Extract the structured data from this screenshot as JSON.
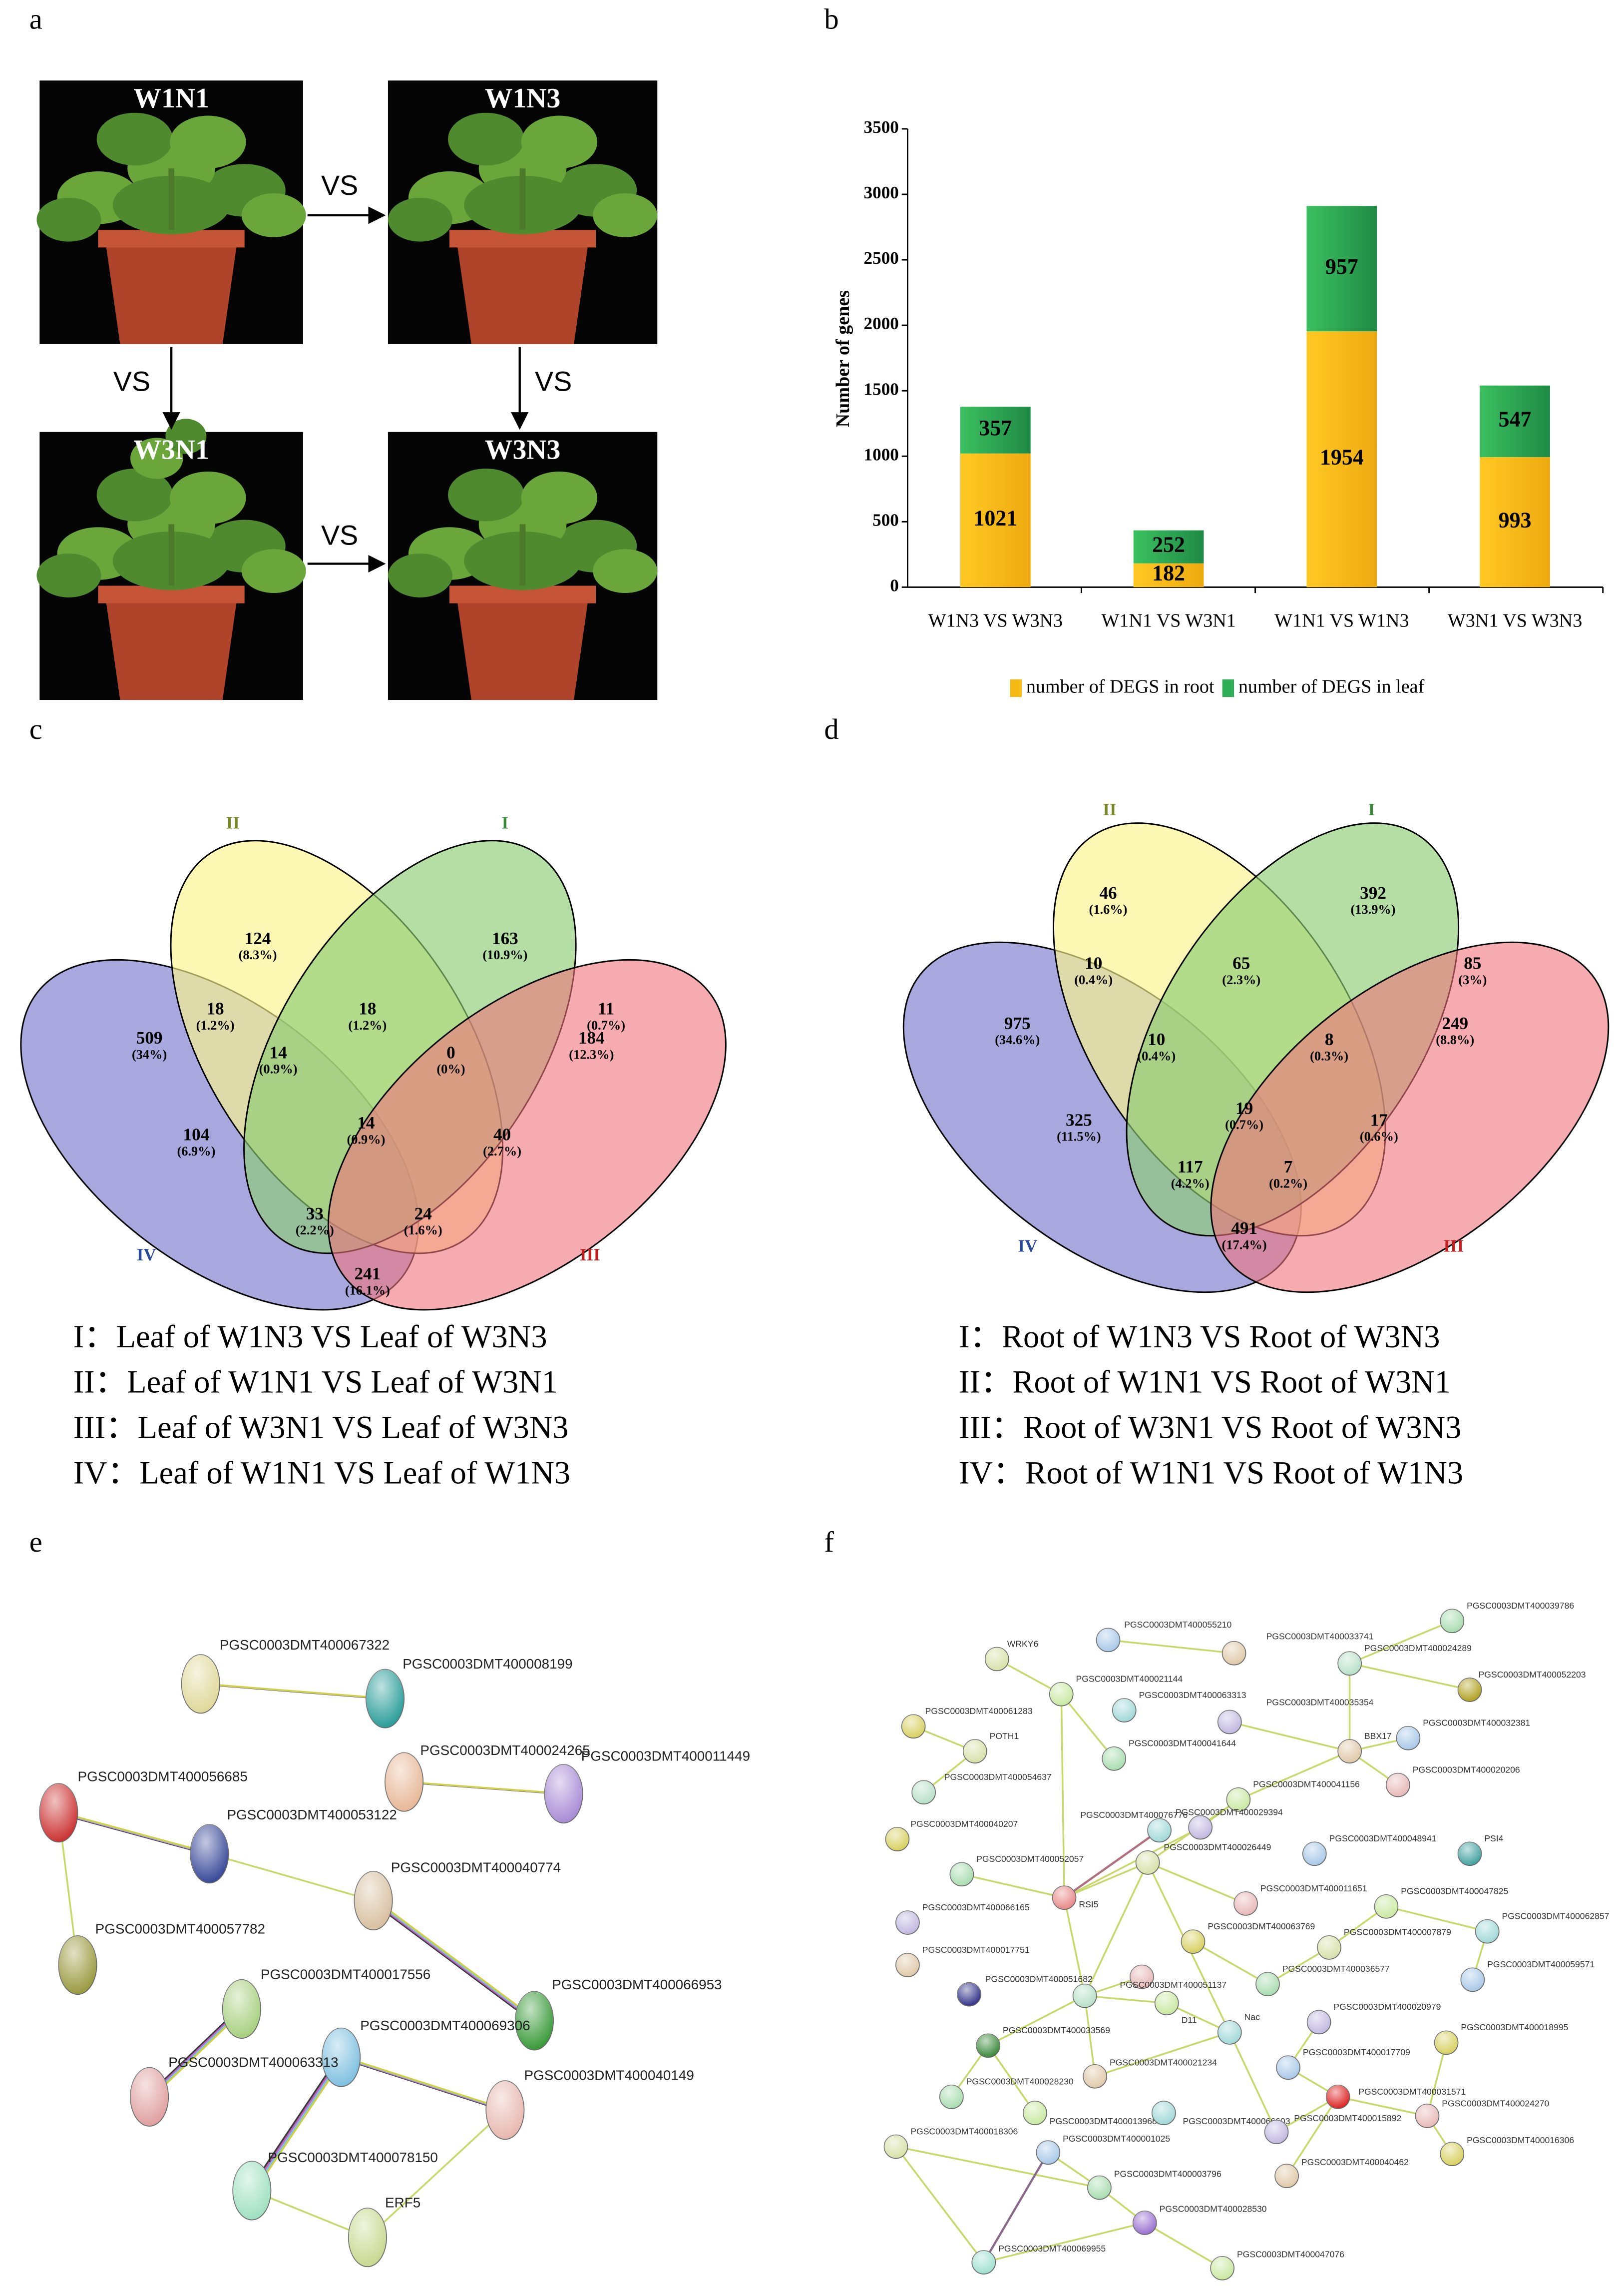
{
  "panel_labels": [
    "a",
    "b",
    "c",
    "d",
    "e",
    "f"
  ],
  "panel_a": {
    "photos": [
      "W1N1",
      "W1N3",
      "W3N1",
      "W3N3"
    ],
    "vs": [
      "VS",
      "VS",
      "VS",
      "VS"
    ]
  },
  "chart_data": {
    "type": "bar",
    "stacked": true,
    "categories": [
      "W1N3 VS W3N3",
      "W1N1 VS W3N1",
      "W1N1 VS W1N3",
      "W3N1 VS W3N3"
    ],
    "series": [
      {
        "name": "number of DEGS in root",
        "color": "#f5b914",
        "values": [
          1021,
          182,
          1954,
          993
        ]
      },
      {
        "name": "number of DEGS in leaf",
        "color": "#2fae55",
        "values": [
          357,
          252,
          957,
          547
        ]
      }
    ],
    "ylabel": "Number of genes",
    "ylim": [
      0,
      3500
    ],
    "yticks": [
      0,
      500,
      1000,
      1500,
      2000,
      2500,
      3000,
      3500
    ],
    "legend": "bottom"
  },
  "venn_c": {
    "sets": [
      "I",
      "II",
      "III",
      "IV"
    ],
    "regions": [
      {
        "value": 124,
        "percent": "(8.3%)"
      },
      {
        "value": 163,
        "percent": "(10.9%)"
      },
      {
        "value": 18,
        "percent": "(1.2%)"
      },
      {
        "value": 18,
        "percent": "(1.2%)"
      },
      {
        "value": 11,
        "percent": "(0.7%)"
      },
      {
        "value": 509,
        "percent": "(34%)"
      },
      {
        "value": 184,
        "percent": "(12.3%)"
      },
      {
        "value": 14,
        "percent": "(0.9%)"
      },
      {
        "value": 0,
        "percent": "(0%)"
      },
      {
        "value": 14,
        "percent": "(0.9%)"
      },
      {
        "value": 104,
        "percent": "(6.9%)"
      },
      {
        "value": 40,
        "percent": "(2.7%)"
      },
      {
        "value": 33,
        "percent": "(2.2%)"
      },
      {
        "value": 24,
        "percent": "(1.6%)"
      },
      {
        "value": 241,
        "percent": "(16.1%)"
      }
    ],
    "legend": [
      "I：Leaf of W1N3 VS Leaf of W3N3",
      "II：Leaf of W1N1 VS Leaf of W3N1",
      "III：Leaf of W3N1 VS Leaf of W3N3",
      "IV：Leaf of W1N1 VS Leaf of W1N3"
    ]
  },
  "venn_d": {
    "sets": [
      "I",
      "II",
      "III",
      "IV"
    ],
    "regions": [
      {
        "value": 46,
        "percent": "(1.6%)"
      },
      {
        "value": 392,
        "percent": "(13.9%)"
      },
      {
        "value": 10,
        "percent": "(0.4%)"
      },
      {
        "value": 65,
        "percent": "(2.3%)"
      },
      {
        "value": 85,
        "percent": "(3%)"
      },
      {
        "value": 975,
        "percent": "(34.6%)"
      },
      {
        "value": 249,
        "percent": "(8.8%)"
      },
      {
        "value": 10,
        "percent": "(0.4%)"
      },
      {
        "value": 8,
        "percent": "(0.3%)"
      },
      {
        "value": 19,
        "percent": "(0.7%)"
      },
      {
        "value": 325,
        "percent": "(11.5%)"
      },
      {
        "value": 17,
        "percent": "(0.6%)"
      },
      {
        "value": 117,
        "percent": "(4.2%)"
      },
      {
        "value": 7,
        "percent": "(0.2%)"
      },
      {
        "value": 491,
        "percent": "(17.4%)"
      }
    ],
    "legend": [
      "I：Root of W1N3 VS Root of W3N3",
      "II：Root of W1N1 VS Root of W3N1",
      "III：Root of W3N1 VS Root of W3N3",
      "IV：Root of W1N1 VS Root of W1N3"
    ]
  },
  "network_e": {
    "nodes": [
      {
        "label": "PGSC0003DMT400067322",
        "color": "#e0d89a"
      },
      {
        "label": "PGSC0003DMT400008199",
        "color": "#2a9d9a"
      },
      {
        "label": "PGSC0003DMT400024265",
        "color": "#e8b898"
      },
      {
        "label": "PGSC0003DMT400011449",
        "color": "#a98cd6"
      },
      {
        "label": "PGSC0003DMT400056685",
        "color": "#cc3333"
      },
      {
        "label": "PGSC0003DMT400053122",
        "color": "#3a4a9a"
      },
      {
        "label": "PGSC0003DMT400040774",
        "color": "#d8c0a0"
      },
      {
        "label": "PGSC0003DMT400057782",
        "color": "#9a9a40"
      },
      {
        "label": "PGSC0003DMT400066953",
        "color": "#3a9a3a"
      },
      {
        "label": "PGSC0003DMT400017556",
        "color": "#a8d080"
      },
      {
        "label": "PGSC0003DMT400069306",
        "color": "#80c0e0"
      },
      {
        "label": "PGSC0003DMT400063313",
        "color": "#e0a0a0"
      },
      {
        "label": "PGSC0003DMT400040149",
        "color": "#e8b8b0"
      },
      {
        "label": "PGSC0003DMT400078150",
        "color": "#a0e0c0"
      },
      {
        "label": "ERF5",
        "color": "#c8d890"
      }
    ]
  },
  "network_f": {
    "nodes": [
      "WRKY6",
      "PGSC0003DMT400055210",
      "PGSC0003DMT400033741",
      "PGSC0003DMT400039786",
      "PGSC0003DMT400024289",
      "PGSC0003DMT400052203",
      "PGSC0003DMT400021144",
      "PGSC0003DMT400063313",
      "PGSC0003DMT400035354",
      "PGSC0003DMT400061283",
      "POTH1",
      "PGSC0003DMT400032381",
      "BBX17",
      "PGSC0003DMT400041644",
      "PGSC0003DMT400054637",
      "PGSC0003DMT400020206",
      "PGSC0003DMT400041156",
      "PGSC0003DMT400076776",
      "PGSC0003DMT400029394",
      "PGSC0003DMT400040207",
      "PGSC0003DMT400026449",
      "PGSC0003DMT400048941",
      "PSI4",
      "PGSC0003DMT400052057",
      "RSI5",
      "PGSC0003DMT400011651",
      "PGSC0003DMT400047825",
      "PGSC0003DMT400062857",
      "PGSC0003DMT400066165",
      "PGSC0003DMT400063769",
      "PGSC0003DMT400007879",
      "PGSC0003DMT400059571",
      "PGSC0003DMT400017751",
      "PGSC0003DMT400036577",
      "PGSC0003DMT400051682",
      "PGSC0003DMT400051137",
      "D11",
      "Nac",
      "PGSC0003DMT400020979",
      "PGSC0003DMT400018995",
      "PGSC0003DMT400033569",
      "PGSC0003DMT400017709",
      "PGSC0003DMT400021234",
      "PGSC0003DMT400028230",
      "PGSC0003DMT400031571",
      "PGSC0003DMT400024270",
      "PGSC0003DMT400013968",
      "PGSC0003DMT400066603",
      "PGSC0003DMT400015892",
      "PGSC0003DMT400016306",
      "PGSC0003DMT400018306",
      "PGSC0003DMT400001025",
      "PGSC0003DMT400040462",
      "PGSC0003DMT400003796",
      "PGSC0003DMT400028530",
      "PGSC0003DMT400069955",
      "PGSC0003DMT400047076"
    ]
  }
}
